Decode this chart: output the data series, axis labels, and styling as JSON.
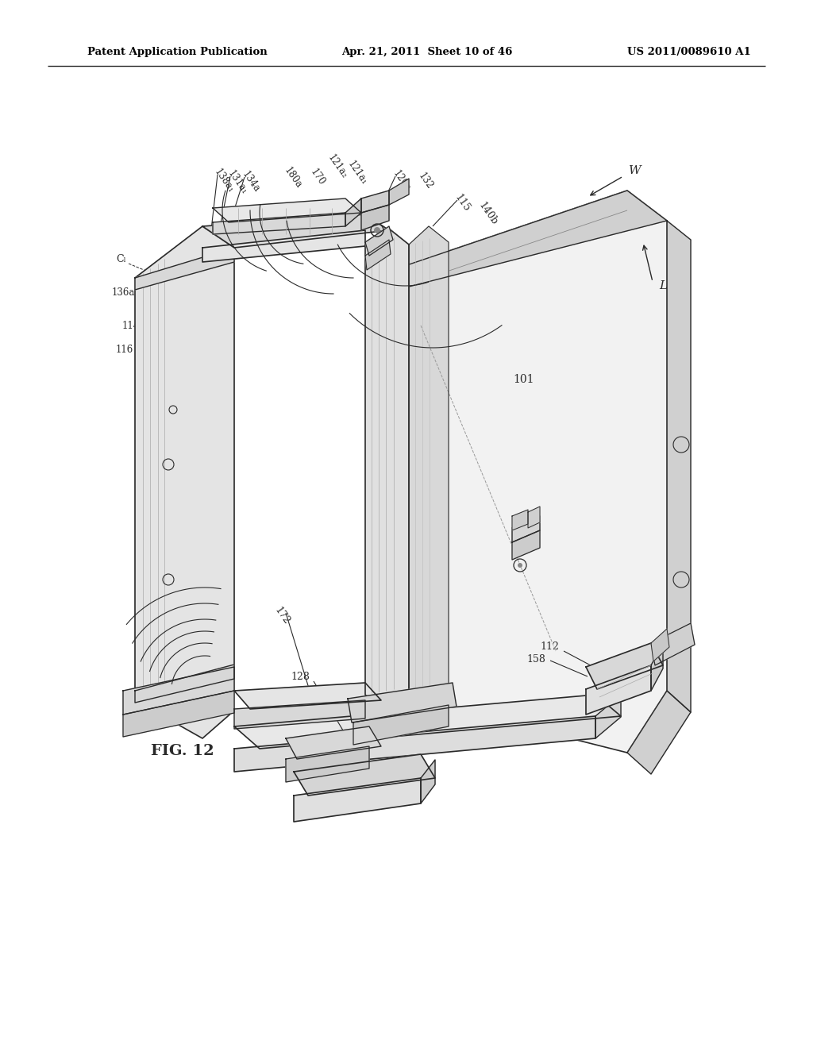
{
  "header_left": "Patent Application Publication",
  "header_center": "Apr. 21, 2011  Sheet 10 of 46",
  "header_right": "US 2011/0089610 A1",
  "fig_label": "FIG. 12",
  "background_color": "#ffffff",
  "line_color": "#2a2a2a",
  "gray_fill": "#e8e8e8",
  "light_fill": "#f2f2f2",
  "dark_fill": "#d0d0d0"
}
